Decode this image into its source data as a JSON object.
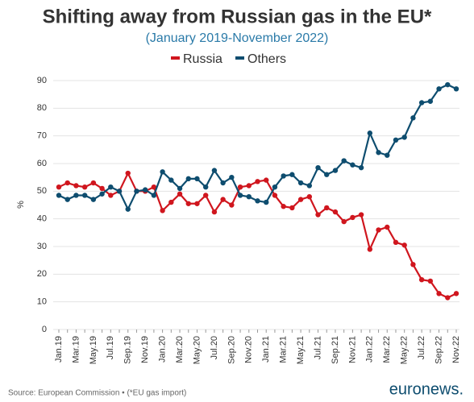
{
  "chart_data": {
    "type": "line",
    "title": "Shifting away from Russian gas in the EU*",
    "subtitle": "(January 2019-November 2022)",
    "y_label": "%",
    "source": "Source: European Commission • (*EU gas import)",
    "brand": "euronews.",
    "categories": [
      "Jan.19",
      null,
      "Mar.19",
      null,
      "May.19",
      null,
      "Jul.19",
      null,
      "Sep.19",
      null,
      "Nov.19",
      null,
      "Jan.20",
      null,
      "Mar.20",
      null,
      "May.20",
      null,
      "Jul.20",
      null,
      "Sep.20",
      null,
      "Nov.20",
      null,
      "Jan.21",
      null,
      "Mar.21",
      null,
      "May.21",
      null,
      "Jul.21",
      null,
      "Sep.21",
      null,
      "Nov.21",
      null,
      "Jan.22",
      null,
      "Mar.22",
      null,
      "May.22",
      null,
      "Jul.22",
      null,
      "Sep.22",
      null,
      "Nov.22"
    ],
    "series": [
      {
        "name": "Russia",
        "color": "#d0161e",
        "values": [
          51.5,
          53,
          52,
          51.5,
          53,
          51,
          48.5,
          50,
          56.5,
          50,
          50,
          51.5,
          43,
          46,
          49,
          45.5,
          45.5,
          48.5,
          42.5,
          47,
          45,
          51.5,
          52,
          53.5,
          54,
          48.5,
          44.5,
          44,
          47,
          48,
          41.5,
          44,
          42.5,
          39,
          40.5,
          41.5,
          29,
          36,
          37,
          31.5,
          30.5,
          23.5,
          18,
          17.5,
          13,
          11.5,
          13
        ]
      },
      {
        "name": "Others",
        "color": "#0e4d6f",
        "values": [
          48.5,
          47,
          48.5,
          48.5,
          47,
          49,
          51.5,
          50,
          43.5,
          50,
          50.5,
          48.5,
          57,
          54,
          51,
          54.5,
          54.5,
          51.5,
          57.5,
          53,
          55,
          48.5,
          48,
          46.5,
          46,
          51.5,
          55.5,
          56,
          53,
          52,
          58.5,
          56,
          57.5,
          61,
          59.5,
          58.5,
          71,
          64,
          63,
          68.5,
          69.5,
          76.5,
          82,
          82.5,
          87,
          88.5,
          87
        ]
      }
    ],
    "ylim": [
      0,
      90
    ],
    "yticks": [
      0,
      10,
      20,
      30,
      40,
      50,
      60,
      70,
      80,
      90
    ],
    "grid": true,
    "legend": "top"
  }
}
